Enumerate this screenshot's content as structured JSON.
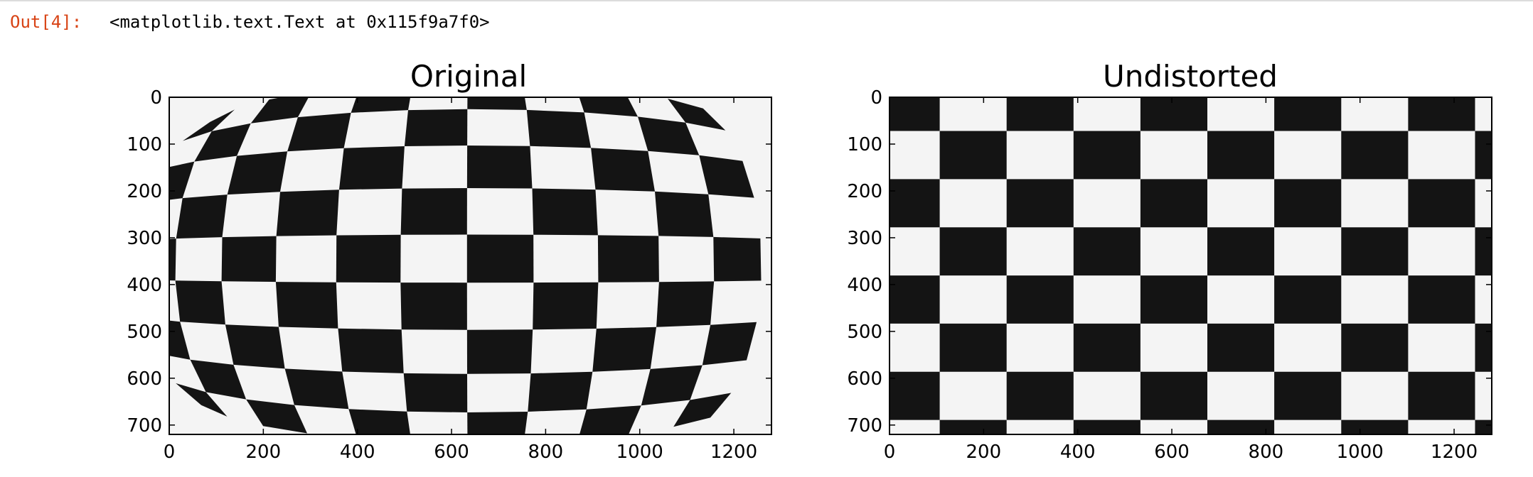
{
  "output": {
    "prompt": "Out[4]:",
    "repr": "<matplotlib.text.Text at 0x115f9a7f0>"
  },
  "colors": {
    "prompt": "#d84315",
    "black_square": "#141414",
    "white_square": "#f4f4f4",
    "axes_frame": "#000000"
  },
  "panels": [
    {
      "title": "Original",
      "xticks": [
        "0",
        "200",
        "400",
        "600",
        "800",
        "1000",
        "1200"
      ],
      "yticks": [
        "0",
        "100",
        "200",
        "300",
        "400",
        "500",
        "600",
        "700"
      ],
      "distorted": true
    },
    {
      "title": "Undistorted",
      "xticks": [
        "0",
        "200",
        "400",
        "600",
        "800",
        "1000",
        "1200"
      ],
      "yticks": [
        "0",
        "100",
        "200",
        "300",
        "400",
        "500",
        "600",
        "700"
      ],
      "distorted": false
    }
  ]
}
